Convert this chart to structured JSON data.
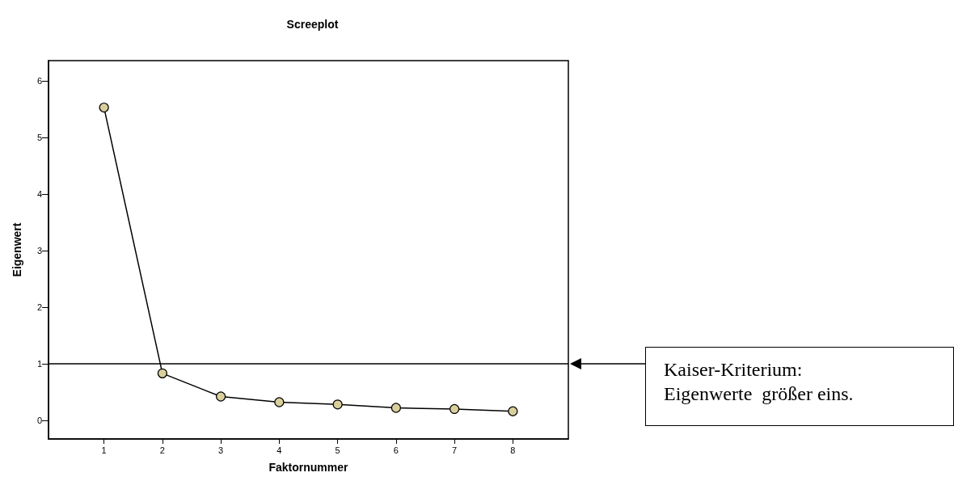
{
  "chart_data": {
    "type": "line",
    "title": "Screeplot",
    "xlabel": "Faktornummer",
    "ylabel": "Eigenwert",
    "x": [
      1,
      2,
      3,
      4,
      5,
      6,
      7,
      8
    ],
    "series": [
      {
        "color": "#d8cf9c",
        "values": [
          5.53,
          0.83,
          0.42,
          0.32,
          0.28,
          0.22,
          0.2,
          0.16
        ]
      }
    ],
    "xlim": [
      0.05,
      8.95
    ],
    "xticks": [
      1,
      2,
      3,
      4,
      5,
      6,
      7,
      8
    ],
    "ylim": [
      -0.33,
      6.36
    ],
    "yticks": [
      0,
      1,
      2,
      3,
      4,
      5,
      6
    ],
    "ref_lines": [
      {
        "axis": "y",
        "value": 1,
        "label": "Kaiser-Kriterium:\nEigenwerte  größer eins.",
        "color": "#000000"
      }
    ],
    "marker": "circle",
    "line_style": "solid"
  }
}
